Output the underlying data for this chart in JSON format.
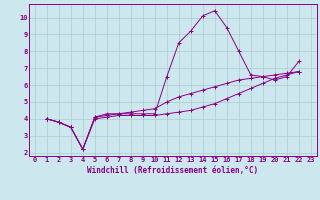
{
  "background_color": "#cce8ee",
  "grid_color": "#aacccc",
  "line_color": "#880088",
  "marker": "+",
  "xlabel": "Windchill (Refroidissement éolien,°C)",
  "xlabel_fontsize": 5.5,
  "tick_fontsize": 5.0,
  "xlim": [
    -0.5,
    23.5
  ],
  "ylim": [
    1.8,
    10.8
  ],
  "yticks": [
    2,
    3,
    4,
    5,
    6,
    7,
    8,
    9,
    10
  ],
  "xticks": [
    0,
    1,
    2,
    3,
    4,
    5,
    6,
    7,
    8,
    9,
    10,
    11,
    12,
    13,
    14,
    15,
    16,
    17,
    18,
    19,
    20,
    21,
    22,
    23
  ],
  "series": [
    [
      4.0,
      3.8,
      3.5,
      2.2,
      4.1,
      4.3,
      4.3,
      4.3,
      4.3,
      4.3,
      6.5,
      8.5,
      9.2,
      10.1,
      10.4,
      9.4,
      8.0,
      6.6,
      6.5,
      6.3,
      6.5,
      7.4
    ],
    [
      4.0,
      3.8,
      3.5,
      2.2,
      4.1,
      4.2,
      4.3,
      4.4,
      4.5,
      4.6,
      5.0,
      5.3,
      5.5,
      5.7,
      5.9,
      6.1,
      6.3,
      6.4,
      6.5,
      6.6,
      6.7,
      6.8
    ],
    [
      4.0,
      3.8,
      3.5,
      2.2,
      4.0,
      4.1,
      4.2,
      4.2,
      4.2,
      4.2,
      4.3,
      4.4,
      4.5,
      4.7,
      4.9,
      5.2,
      5.5,
      5.8,
      6.1,
      6.4,
      6.6,
      6.8
    ]
  ],
  "x_start": 1
}
